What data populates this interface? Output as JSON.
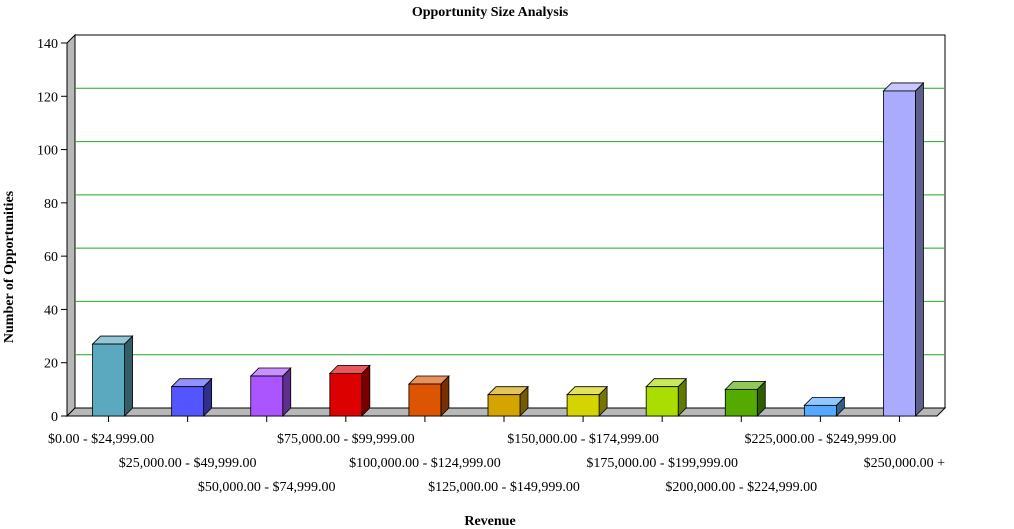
{
  "chart_data": {
    "type": "bar",
    "title": "Opportunity Size Analysis",
    "xlabel": "Revenue",
    "ylabel": "Number of Opportunities",
    "ylim": [
      0,
      140
    ],
    "yticks": [
      0,
      20,
      40,
      60,
      80,
      100,
      120,
      140
    ],
    "grid": true,
    "legend": "none",
    "categories": [
      "$0.00 - $24,999.00",
      "$25,000.00 - $49,999.00",
      "$50,000.00 - $74,999.00",
      "$75,000.00 - $99,999.00",
      "$100,000.00 - $124,999.00",
      "$125,000.00 - $149,999.00",
      "$150,000.00 - $174,999.00",
      "$175,000.00 - $199,999.00",
      "$200,000.00 - $224,999.00",
      "$225,000.00 - $249,999.00",
      "$250,000.00 +"
    ],
    "values": [
      27,
      11,
      15,
      16,
      12,
      8,
      8,
      11,
      10,
      4,
      122
    ],
    "colors": [
      "#5aa9be",
      "#5555ff",
      "#aa55ff",
      "#dd0000",
      "#dd5500",
      "#d4a400",
      "#d4d400",
      "#aadd00",
      "#55aa00",
      "#55aaff",
      "#aaaaff"
    ],
    "grid_color": "#22aa22"
  }
}
